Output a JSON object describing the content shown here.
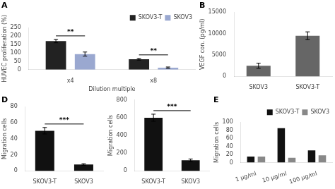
{
  "chart_data": [
    {
      "type": "bar",
      "title": "A",
      "xlabel": "Dilution multiple",
      "ylabel": "HUVEC proliferation (%)",
      "categories": [
        "x4",
        "x8"
      ],
      "series": [
        {
          "name": "SKOV3-T",
          "color": "#222222",
          "values": [
            170,
            62
          ],
          "errors": [
            10,
            5
          ]
        },
        {
          "name": "SKOV3",
          "color": "#9aa8d0",
          "values": [
            93,
            12
          ],
          "errors": [
            12,
            4
          ]
        }
      ],
      "ylim": [
        0,
        250
      ],
      "yticks": [
        0,
        50,
        100,
        150,
        200,
        250
      ],
      "grid": false,
      "legend": "upper right",
      "annotations": [
        {
          "text": "**",
          "categories": [
            "x4"
          ]
        },
        {
          "text": "**",
          "categories": [
            "x8"
          ]
        }
      ]
    },
    {
      "type": "bar",
      "title": "B",
      "ylabel": "VEGF con. (pg/ml)",
      "categories": [
        "SKOV3",
        "SKOV3-T"
      ],
      "values": [
        2500,
        9500
      ],
      "errors": [
        600,
        900
      ],
      "color": "#666666",
      "ylim": [
        0,
        15000
      ],
      "yticks": [
        0,
        5000,
        10000,
        15000
      ],
      "grid": false
    },
    {
      "type": "bar",
      "title": "D",
      "ylabel": "Migration cells",
      "categories": [
        "SKOV3-T",
        "SKOV3"
      ],
      "values": [
        50,
        8
      ],
      "errors": [
        4,
        1
      ],
      "color": "#111111",
      "ylim": [
        0,
        80
      ],
      "yticks": [
        0,
        20,
        40,
        60,
        80
      ],
      "grid": false,
      "annotations": [
        {
          "text": "***",
          "categories": [
            "SKOV3-T",
            "SKOV3"
          ]
        }
      ]
    },
    {
      "type": "bar",
      "ylabel": "Migration cells",
      "categories": [
        "SKOV3-T",
        "SKOV3"
      ],
      "values": [
        600,
        120
      ],
      "errors": [
        40,
        15
      ],
      "color": "#111111",
      "ylim": [
        0,
        800
      ],
      "yticks": [
        0,
        200,
        400,
        600,
        800
      ],
      "grid": false,
      "annotations": [
        {
          "text": "***",
          "categories": [
            "SKOV3-T",
            "SKOV3"
          ]
        }
      ]
    },
    {
      "type": "bar",
      "title": "E",
      "ylabel": "Migration cells",
      "categories": [
        "1 μg/ml",
        "10 μg/ml",
        "100 μg/ml"
      ],
      "series": [
        {
          "name": "SKOV3-T",
          "color": "#111111",
          "values": [
            15,
            85,
            30
          ]
        },
        {
          "name": "SKOV3",
          "color": "#888888",
          "values": [
            15,
            12,
            18
          ]
        }
      ],
      "ylim": [
        0,
        100
      ],
      "yticks": [
        0,
        20,
        40,
        60,
        80,
        100
      ],
      "grid": false,
      "legend": "upper right"
    }
  ]
}
